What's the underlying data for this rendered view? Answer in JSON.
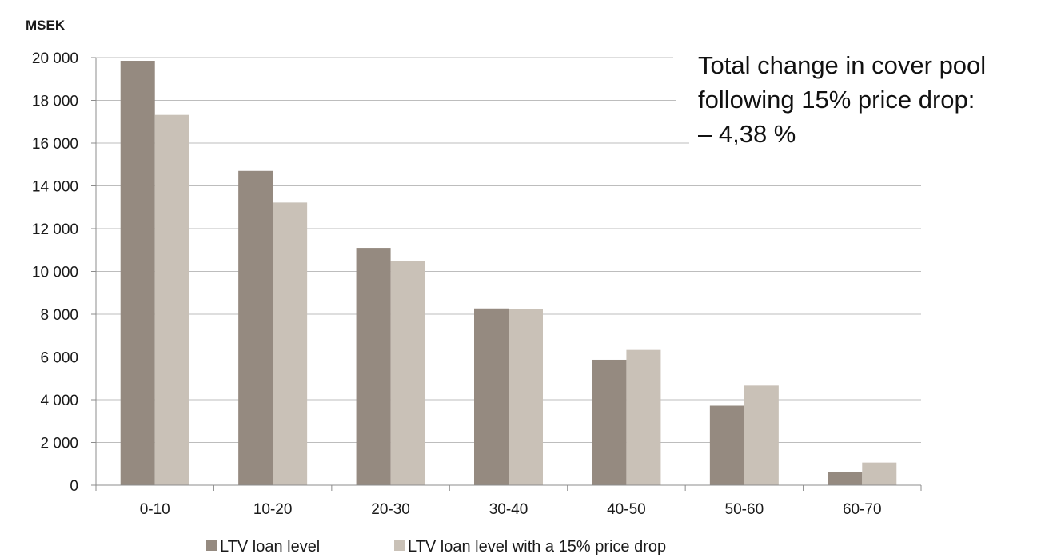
{
  "chart_data": {
    "type": "bar",
    "ylabel": "MSEK",
    "xlabel": "",
    "categories": [
      "0-10",
      "10-20",
      "20-30",
      "30-40",
      "40-50",
      "50-60",
      "60-70"
    ],
    "series": [
      {
        "name": "LTV loan level",
        "values": [
          19850,
          14700,
          11100,
          8270,
          5870,
          3720,
          620
        ],
        "color": "#958a80"
      },
      {
        "name": "LTV loan level with a 15% price drop",
        "values": [
          17320,
          13220,
          10470,
          8240,
          6330,
          4660,
          1060
        ],
        "color": "#c9c1b7"
      }
    ],
    "ylim": [
      0,
      20000
    ],
    "yticks": [
      0,
      2000,
      4000,
      6000,
      8000,
      10000,
      12000,
      14000,
      16000,
      18000,
      20000
    ],
    "ytick_labels": [
      "0",
      "2 000",
      "4 000",
      "6 000",
      "8 000",
      "10 000",
      "12 000",
      "14 000",
      "16 000",
      "18 000",
      "20 000"
    ],
    "grid": true,
    "legend_position": "bottom",
    "annotation": [
      "Total change in cover pool",
      "following 15% price drop:",
      "– 4,38 %"
    ]
  }
}
